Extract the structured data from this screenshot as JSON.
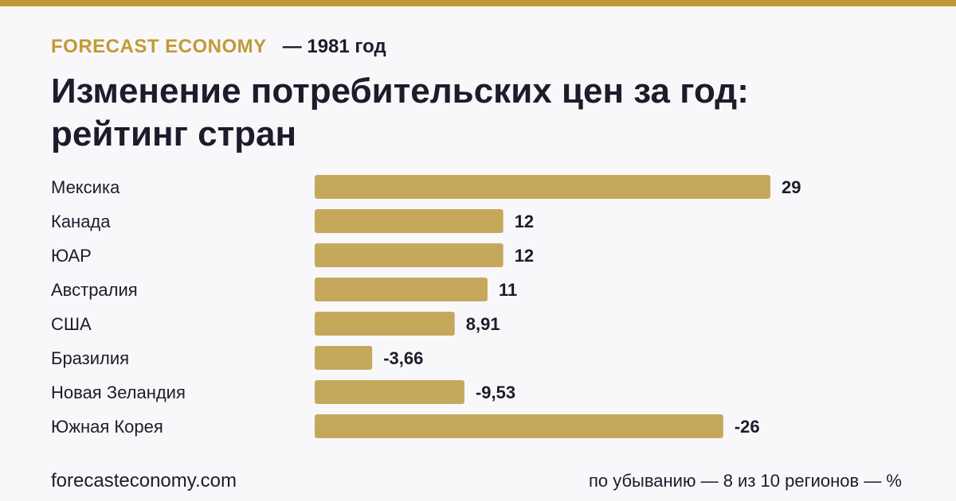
{
  "colors": {
    "accent": "#c19a35",
    "bar": "#c6a85d",
    "text": "#1c1c2b",
    "background": "#f8f8fb"
  },
  "header": {
    "brand": "FORECAST ECONOMY",
    "year": "— 1981 год"
  },
  "title_lines": [
    "Изменение потребительских цен за год:",
    "рейтинг стран"
  ],
  "chart_data": {
    "type": "bar",
    "orientation": "horizontal",
    "categories": [
      "Мексика",
      "Канада",
      "ЮАР",
      "Австралия",
      "США",
      "Бразилия",
      "Новая Зеландия",
      "Южная Корея"
    ],
    "values": [
      29,
      12,
      12,
      11,
      8.91,
      -3.66,
      -9.53,
      -26
    ],
    "value_labels": [
      "29",
      "12",
      "12",
      "11",
      "8,91",
      "-3,66",
      "-9,53",
      "-26"
    ],
    "bar_length": "absolute value",
    "title": "Изменение потребительских цен за год: рейтинг стран",
    "unit": "%",
    "grid": false
  },
  "footer": {
    "site": "forecasteconomy.com",
    "note": "по убыванию — 8 из 10 регионов — %"
  }
}
